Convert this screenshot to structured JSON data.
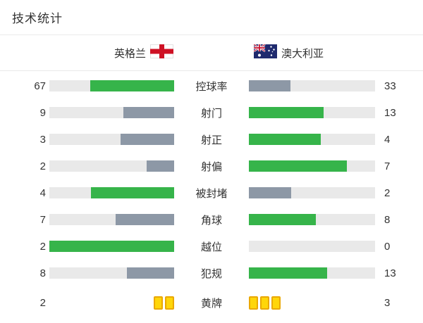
{
  "title": "技术统计",
  "teams": {
    "home": {
      "name": "英格兰"
    },
    "away": {
      "name": "澳大利亚"
    }
  },
  "colors": {
    "green": "#36b44a",
    "gray": "#8d98a6",
    "track": "#e9e9e9",
    "card_fill": "#ffd60a",
    "card_border": "#eaa800",
    "england_red": "#ce1124",
    "australia_navy": "#1f2a6e"
  },
  "rows": [
    {
      "label": "控球率",
      "home": {
        "value": "67",
        "pct": 67,
        "tone": "green"
      },
      "away": {
        "value": "33",
        "pct": 33,
        "tone": "gray"
      }
    },
    {
      "label": "射门",
      "home": {
        "value": "9",
        "pct": 40.9,
        "tone": "gray"
      },
      "away": {
        "value": "13",
        "pct": 59.1,
        "tone": "green"
      }
    },
    {
      "label": "射正",
      "home": {
        "value": "3",
        "pct": 42.9,
        "tone": "gray"
      },
      "away": {
        "value": "4",
        "pct": 57.1,
        "tone": "green"
      }
    },
    {
      "label": "射偏",
      "home": {
        "value": "2",
        "pct": 22.2,
        "tone": "gray"
      },
      "away": {
        "value": "7",
        "pct": 77.8,
        "tone": "green"
      }
    },
    {
      "label": "被封堵",
      "home": {
        "value": "4",
        "pct": 66.7,
        "tone": "green"
      },
      "away": {
        "value": "2",
        "pct": 33.3,
        "tone": "gray"
      }
    },
    {
      "label": "角球",
      "home": {
        "value": "7",
        "pct": 46.7,
        "tone": "gray"
      },
      "away": {
        "value": "8",
        "pct": 53.3,
        "tone": "green"
      }
    },
    {
      "label": "越位",
      "home": {
        "value": "2",
        "pct": 100,
        "tone": "green"
      },
      "away": {
        "value": "0",
        "pct": 0,
        "tone": "gray"
      }
    },
    {
      "label": "犯规",
      "home": {
        "value": "8",
        "pct": 38.1,
        "tone": "gray"
      },
      "away": {
        "value": "13",
        "pct": 61.9,
        "tone": "green"
      }
    },
    {
      "label": "黄牌",
      "home": {
        "value": "2",
        "cards": 2
      },
      "away": {
        "value": "3",
        "cards": 3
      }
    }
  ],
  "chart_data": {
    "type": "bar",
    "orientation": "horizontal-paired",
    "title": "技术统计",
    "categories": [
      "控球率",
      "射门",
      "射正",
      "射偏",
      "被封堵",
      "角球",
      "越位",
      "犯规",
      "黄牌"
    ],
    "series": [
      {
        "name": "英格兰",
        "values": [
          67,
          9,
          3,
          2,
          4,
          7,
          2,
          8,
          2
        ]
      },
      {
        "name": "澳大利亚",
        "values": [
          33,
          13,
          4,
          7,
          2,
          8,
          0,
          13,
          3
        ]
      }
    ],
    "layout_hints": "bar length = value/(home+away); higher value green, lower gray-blue; yellow-cards row rendered as card icons"
  }
}
